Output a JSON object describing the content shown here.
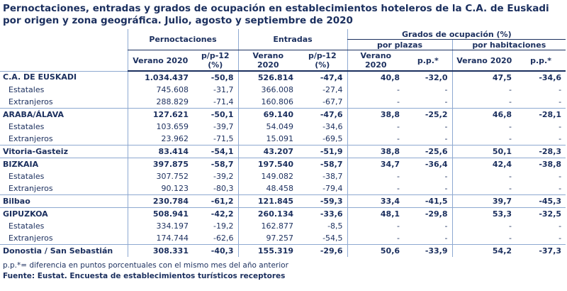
{
  "title": "Pernoctaciones, entradas y grados de ocupación en establecimientos hoteleros de la C.A. de Euskadi por origen y zona geográfica. Julio, agosto y septiembre de 2020",
  "table": {
    "header": {
      "groups": [
        "Pernoctaciones",
        "Entradas",
        "Grados de ocupación (%)"
      ],
      "subgroups": [
        "por plazas",
        "por habitaciones"
      ],
      "columns": [
        "Verano 2020",
        "p/p-12 (%)",
        "Verano 2020",
        "p/p-12 (%)",
        "Verano 2020",
        "p.p.*",
        "Verano 2020",
        "p.p.*"
      ]
    },
    "rows": [
      {
        "label": "C.A. DE EUSKADI",
        "cells": [
          "1.034.437",
          "-50,8",
          "526.814",
          "-47,4",
          "40,8",
          "-32,0",
          "47,5",
          "-34,6"
        ],
        "children": [
          {
            "label": "Estatales",
            "cells": [
              "745.608",
              "-31,7",
              "366.008",
              "-27,4",
              "-",
              "-",
              "-",
              "-"
            ]
          },
          {
            "label": "Extranjeros",
            "cells": [
              "288.829",
              "-71,4",
              "160.806",
              "-67,7",
              "-",
              "-",
              "-",
              "-"
            ]
          }
        ]
      },
      {
        "label": "ARABA/ÁLAVA",
        "cells": [
          "127.621",
          "-50,1",
          "69.140",
          "-47,6",
          "38,8",
          "-25,2",
          "46,8",
          "-28,1"
        ],
        "children": [
          {
            "label": "Estatales",
            "cells": [
              "103.659",
              "-39,7",
              "54.049",
              "-34,6",
              "-",
              "-",
              "-",
              "-"
            ]
          },
          {
            "label": "Extranjeros",
            "cells": [
              "23.962",
              "-71,5",
              "15.091",
              "-69,5",
              "-",
              "-",
              "-",
              "-"
            ]
          }
        ]
      },
      {
        "label": "Vitoria-Gasteiz",
        "cells": [
          "83.414",
          "-54,1",
          "43.207",
          "-51,9",
          "38,8",
          "-25,6",
          "50,1",
          "-28,3"
        ],
        "children": []
      },
      {
        "label": "BIZKAIA",
        "cells": [
          "397.875",
          "-58,7",
          "197.540",
          "-58,7",
          "34,7",
          "-36,4",
          "42,4",
          "-38,8"
        ],
        "children": [
          {
            "label": "Estatales",
            "cells": [
              "307.752",
              "-39,2",
              "149.082",
              "-38,7",
              "-",
              "-",
              "-",
              "-"
            ]
          },
          {
            "label": "Extranjeros",
            "cells": [
              "90.123",
              "-80,3",
              "48.458",
              "-79,4",
              "-",
              "-",
              "-",
              "-"
            ]
          }
        ]
      },
      {
        "label": "Bilbao",
        "cells": [
          "230.784",
          "-61,2",
          "121.845",
          "-59,3",
          "33,4",
          "-41,5",
          "39,7",
          "-45,3"
        ],
        "children": []
      },
      {
        "label": "GIPUZKOA",
        "cells": [
          "508.941",
          "-42,2",
          "260.134",
          "-33,6",
          "48,1",
          "-29,8",
          "53,3",
          "-32,5"
        ],
        "children": [
          {
            "label": "Estatales",
            "cells": [
              "334.197",
              "-19,2",
              "162.877",
              "-8,5",
              "-",
              "-",
              "-",
              "-"
            ]
          },
          {
            "label": "Extranjeros",
            "cells": [
              "174.744",
              "-62,6",
              "97.257",
              "-54,5",
              "-",
              "-",
              "-",
              "-"
            ]
          }
        ]
      },
      {
        "label": "Donostia / San Sebastián",
        "cells": [
          "308.331",
          "-40,3",
          "155.319",
          "-29,6",
          "50,6",
          "-33,9",
          "54,2",
          "-37,3"
        ],
        "children": []
      }
    ]
  },
  "footnote": "p.p.*= diferencia en puntos porcentuales con el mismo mes del año anterior",
  "source": "Fuente: Eustat. Encuesta de establecimientos turísticos receptores"
}
